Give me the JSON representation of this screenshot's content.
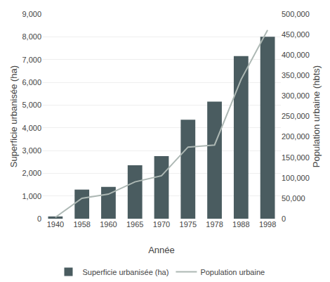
{
  "chart_data": {
    "type": "bar",
    "categories": [
      "1940",
      "1958",
      "1960",
      "1965",
      "1970",
      "1975",
      "1978",
      "1988",
      "1998"
    ],
    "series": [
      {
        "name": "Superficie urbanisée (ha)",
        "type": "bar",
        "color": "#4a5c60",
        "values": [
          100,
          1280,
          1400,
          2350,
          2750,
          4350,
          5150,
          7150,
          8000
        ]
      },
      {
        "name": "Population urbaine",
        "type": "line",
        "axis": "y2",
        "color": "#adb8b4",
        "values": [
          3500,
          50000,
          60000,
          90000,
          105000,
          175000,
          180000,
          340000,
          461000
        ]
      }
    ],
    "xlabel": "Année",
    "ylabel": "Superficie urbanisée (ha)",
    "y2label": "Population urbaine (hbts)",
    "ylim": [
      0,
      9000
    ],
    "yticks": [
      0,
      {
        "value": 1000,
        "label": "1,000"
      },
      {
        "value": 2000,
        "label": "2,000"
      },
      {
        "value": 3000,
        "label": "3,000"
      },
      {
        "value": 4000,
        "label": "4,000"
      },
      {
        "value": 5000,
        "label": "5,000"
      },
      {
        "value": 6000,
        "label": "6,000"
      },
      {
        "value": 7000,
        "label": "7,000"
      },
      {
        "value": 8000,
        "label": "8,000"
      },
      {
        "value": 9000,
        "label": "9,000"
      }
    ],
    "y2lim": [
      0,
      500000
    ],
    "y2ticks": [
      0,
      {
        "value": 50000,
        "label": "50,000"
      },
      {
        "value": 100000,
        "label": "100,000"
      },
      {
        "value": 150000,
        "label": "150,000"
      },
      {
        "value": 200000,
        "label": "200,000"
      },
      {
        "value": 250000,
        "label": "250,000"
      },
      {
        "value": 300000,
        "label": "300,000"
      },
      {
        "value": 350000,
        "label": "350,000"
      },
      {
        "value": 400000,
        "label": "400,000"
      },
      {
        "value": 450000,
        "label": "450,000"
      },
      {
        "value": 500000,
        "label": "500,000"
      }
    ],
    "grid": true,
    "legend": "bottom"
  }
}
